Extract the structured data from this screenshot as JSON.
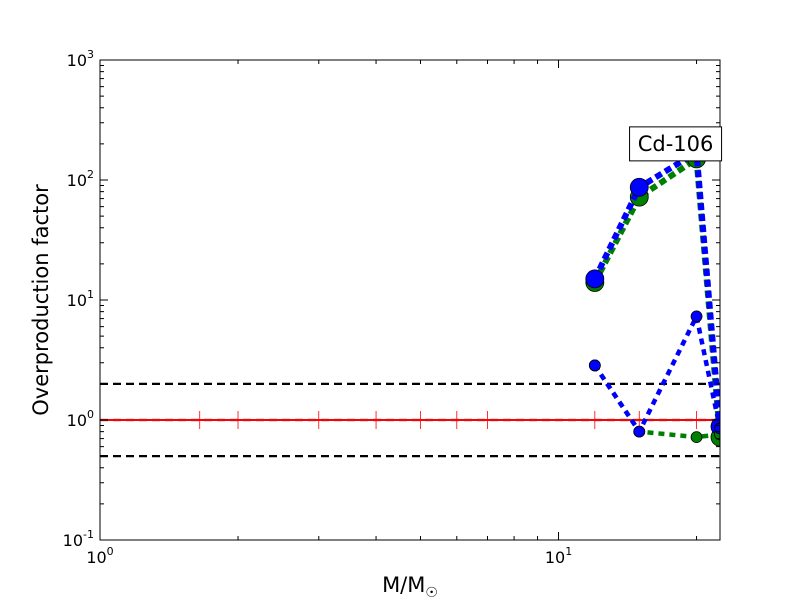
{
  "chart_data": {
    "type": "line",
    "title": "",
    "xlabel": "M/M",
    "xlabel_subscript": "☉",
    "ylabel": "Overproduction factor",
    "x_scale": "log",
    "y_scale": "log",
    "xlim": [
      1,
      22.5
    ],
    "ylim": [
      0.1,
      1000
    ],
    "x_ticks": [
      {
        "value": 1,
        "base": "10",
        "exp": "0"
      },
      {
        "value": 10,
        "base": "10",
        "exp": "1"
      }
    ],
    "y_ticks": [
      {
        "value": 0.1,
        "base": "10",
        "exp": "-1"
      },
      {
        "value": 1,
        "base": "10",
        "exp": "0"
      },
      {
        "value": 10,
        "base": "10",
        "exp": "1"
      },
      {
        "value": 100,
        "base": "10",
        "exp": "2"
      },
      {
        "value": 1000,
        "base": "10",
        "exp": "3"
      }
    ],
    "annotation": {
      "text": "Cd-106",
      "x": 18.0,
      "y": 200
    },
    "reference_lines": [
      {
        "y": 2.0,
        "color": "#000000",
        "style": "dashed"
      },
      {
        "y": 1.0,
        "color": "#000000",
        "style": "dashed"
      },
      {
        "y": 0.5,
        "color": "#000000",
        "style": "dashed"
      }
    ],
    "baseline": {
      "y": 1.0,
      "color": "#ff0000",
      "x": [
        1.0,
        22.5
      ],
      "tick_marks_x": [
        1.65,
        2.0,
        3.0,
        4.0,
        5.0,
        6.0,
        7.0,
        12.0,
        15.0,
        20.0
      ]
    },
    "series": [
      {
        "x": [
          12,
          15,
          20,
          22.5
        ],
        "y": [
          14,
          72,
          150,
          0.72
        ],
        "color": "#008000",
        "marker_size": "large",
        "line_width": "thick"
      },
      {
        "x": [
          12,
          15,
          20,
          22.5
        ],
        "y": [
          15,
          87,
          170,
          0.88
        ],
        "color": "#0000ff",
        "marker_size": "large",
        "line_width": "thick"
      },
      {
        "x": [
          12,
          15,
          20,
          22.5
        ],
        "y": [
          2.85,
          0.8,
          0.72,
          0.76
        ],
        "color": "#008000",
        "marker_size": "small",
        "line_width": "medium"
      },
      {
        "x": [
          12,
          15,
          20,
          22.5
        ],
        "y": [
          2.85,
          0.8,
          7.3,
          0.85
        ],
        "color": "#0000ff",
        "marker_size": "small",
        "line_width": "medium"
      }
    ]
  }
}
